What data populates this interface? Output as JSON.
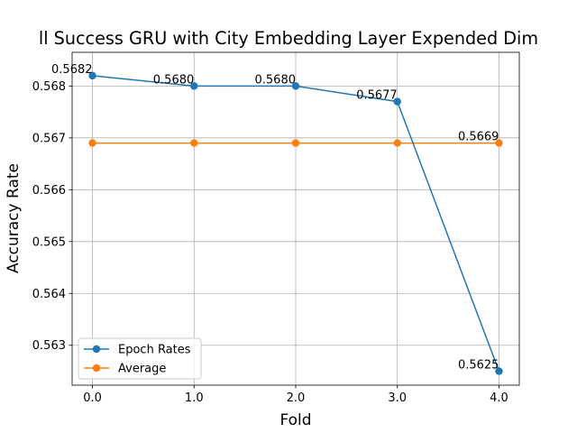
{
  "chart_data": {
    "type": "line",
    "title": "ll Success GRU with City Embedding Layer Expended Dim",
    "xlabel": "Fold",
    "ylabel": "Accuracy Rate",
    "x": [
      0,
      1,
      2,
      3,
      4
    ],
    "x_tick_labels": [
      "0.0",
      "1.0",
      "2.0",
      "3.0",
      "4.0"
    ],
    "xlim": [
      -0.2,
      4.2
    ],
    "ylim": [
      0.56223,
      0.56865
    ],
    "y_ticks": [
      0.563,
      0.564,
      0.565,
      0.566,
      0.567,
      0.568
    ],
    "y_tick_labels": [
      "0.563",
      "0.564",
      "0.565",
      "0.566",
      "0.567",
      "0.568"
    ],
    "grid": true,
    "legend_position": "lower-left",
    "series": [
      {
        "name": "Epoch Rates",
        "color": "#1f77b4",
        "marker": "circle",
        "values": [
          0.5682,
          0.568,
          0.568,
          0.5677,
          0.5625
        ],
        "point_labels": [
          "0.5682",
          "0.5680",
          "0.5680",
          "0.5677",
          "0.5625"
        ]
      },
      {
        "name": "Average",
        "color": "#ff7f0e",
        "marker": "circle",
        "values": [
          0.5669,
          0.5669,
          0.5669,
          0.5669,
          0.5669
        ],
        "point_labels": [
          "",
          "",
          "",
          "",
          "0.5669"
        ]
      }
    ]
  }
}
